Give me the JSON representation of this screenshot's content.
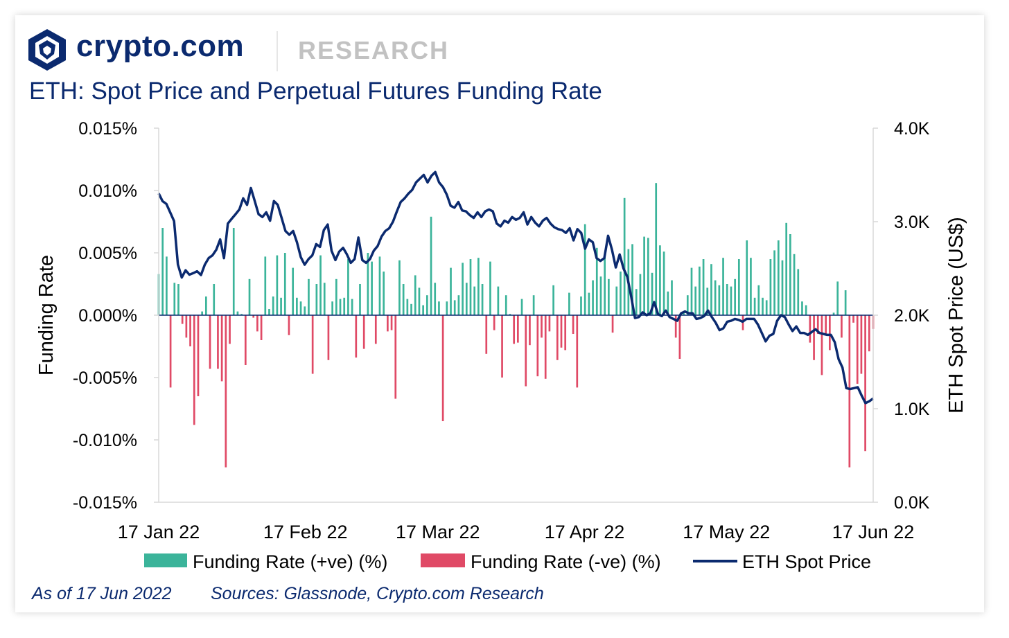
{
  "header": {
    "brand_name": "crypto.com",
    "section_label": "RESEARCH"
  },
  "chart_title": "ETH: Spot Price and Perpetual Futures Funding Rate",
  "footer": {
    "as_of": "As of 17 Jun 2022",
    "sources": "Sources: Glassnode, Crypto.com Research"
  },
  "colors": {
    "positive": "#3bb49a",
    "negative": "#e04a66",
    "line": "#0b2a6f",
    "title": "#0b2a6f"
  },
  "icons": {
    "logo": "crypto-com-lion-shield-icon"
  },
  "chart_data": {
    "type": "bar",
    "title": "ETH: Spot Price and Perpetual Futures Funding Rate",
    "ylabel": "Funding Rate",
    "y2label": "ETH Spot Price (US$)",
    "ylim": [
      -0.015,
      0.015
    ],
    "y2lim": [
      0,
      4000
    ],
    "yticks": [
      "0.015%",
      "0.010%",
      "0.005%",
      "0.000%",
      "-0.005%",
      "-0.010%",
      "-0.015%"
    ],
    "y2ticks": [
      "4.0K",
      "3.0K",
      "2.0K",
      "1.0K",
      "0.0K"
    ],
    "xticks": [
      "17 Jan 22",
      "17 Feb 22",
      "17 Mar 22",
      "17 Apr 22",
      "17 May 22",
      "17 Jun 22"
    ],
    "x_range": [
      "2022-01-17",
      "2022-06-17"
    ],
    "grid": false,
    "legend_position": "bottom",
    "legend": [
      "Funding Rate (+ve) (%)",
      "Funding Rate (-ve) (%)",
      "ETH Spot Price"
    ],
    "funding_rate_pct": [
      0.0033,
      0.007,
      0.0047,
      -0.0058,
      0.0026,
      0.0025,
      -0.0007,
      -0.0018,
      -0.0025,
      -0.0088,
      -0.0065,
      0.0003,
      0.0015,
      -0.0043,
      0.0025,
      -0.0043,
      -0.0053,
      -0.0122,
      -0.0023,
      0.007,
      0.0003,
      0.0001,
      -0.004,
      0.0029,
      -0.0002,
      -0.0013,
      -0.002,
      0.0047,
      0.0005,
      0.0015,
      0.0048,
      0.0014,
      0.005,
      -0.0016,
      0.0038,
      0.0014,
      0.0011,
      0.0007,
      0.0029,
      -0.0047,
      0.0025,
      0.0048,
      0.0026,
      -0.0036,
      0.0011,
      0.0029,
      0.0013,
      0.0014,
      0.0045,
      0.0013,
      -0.0034,
      0.0025,
      -0.0027,
      0.005,
      0.0043,
      -0.0023,
      0.0047,
      0.0035,
      -0.0013,
      -0.0012,
      -0.0067,
      0.0044,
      0.0025,
      0.0013,
      0.0009,
      0.0032,
      0.0022,
      0.0008,
      0.0016,
      0.0079,
      0.0026,
      0.0011,
      -0.0085,
      0.0011,
      0.0038,
      0.0012,
      0.0016,
      0.0042,
      0.0026,
      0.0045,
      0.0023,
      0.0046,
      0.0025,
      -0.0031,
      0.0043,
      -0.0012,
      0.0023,
      -0.005,
      0.0016,
      0.0001,
      -0.0023,
      -0.0022,
      0.0013,
      -0.0057,
      -0.0024,
      0.0016,
      -0.0049,
      -0.0018,
      -0.0051,
      -0.0013,
      0.0024,
      -0.0036,
      -0.0026,
      -0.0028,
      0.0018,
      -0.0015,
      -0.0058,
      0.0015,
      0.0073,
      0.0018,
      0.0028,
      0.0054,
      0.0031,
      0.0047,
      0.0029,
      -0.0014,
      0.0023,
      0.0035,
      0.0094,
      0.0053,
      0.0057,
      0.0021,
      0.0033,
      0.0063,
      0.0062,
      0.0034,
      0.0106,
      0.0056,
      0.0051,
      0.0019,
      0.0028,
      -0.0018,
      -0.0035,
      0.0003,
      0.0016,
      0.0038,
      0.0023,
      0.0039,
      0.0045,
      0.0022,
      0.0041,
      0.0028,
      0.0024,
      0.0046,
      0.0025,
      0.0023,
      0.0029,
      0.0045,
      -0.0012,
      0.006,
      0.0046,
      0.0014,
      0.0024,
      0.0014,
      0.0012,
      0.0045,
      0.0052,
      0.006,
      0.0044,
      0.0074,
      0.0065,
      0.0049,
      0.0037,
      0.0011,
      0.0008,
      -0.0022,
      -0.0036,
      -0.0015,
      -0.0048,
      -0.0015,
      -0.0028,
      0.0002,
      0.0027,
      -0.0018,
      0.002,
      -0.0122,
      -0.0006,
      -0.0055,
      -0.0047,
      -0.0109,
      -0.0029,
      -0.0011
    ],
    "eth_spot_price": [
      3302,
      3220,
      3190,
      3099,
      3006,
      2542,
      2403,
      2480,
      2433,
      2450,
      2470,
      2430,
      2540,
      2610,
      2640,
      2700,
      2810,
      2610,
      2980,
      3030,
      3080,
      3130,
      3250,
      3180,
      3360,
      3220,
      3080,
      3050,
      3100,
      3010,
      3220,
      3180,
      3040,
      2900,
      2860,
      2900,
      2780,
      2620,
      2540,
      2600,
      2640,
      2760,
      2730,
      2910,
      2970,
      2690,
      2590,
      2680,
      2720,
      2650,
      2560,
      2600,
      2830,
      2590,
      2560,
      2600,
      2690,
      2740,
      2840,
      2900,
      2930,
      3000,
      3110,
      3210,
      3250,
      3300,
      3340,
      3420,
      3460,
      3500,
      3420,
      3490,
      3530,
      3420,
      3370,
      3290,
      3170,
      3150,
      3210,
      3120,
      3110,
      3070,
      3040,
      3100,
      3050,
      3110,
      3130,
      3110,
      2980,
      2950,
      3010,
      2990,
      3050,
      3020,
      3040,
      3100,
      2970,
      3050,
      2990,
      2950,
      3010,
      3040,
      2980,
      2940,
      2920,
      2910,
      2880,
      2930,
      2800,
      2920,
      2880,
      2710,
      2810,
      2780,
      2610,
      2580,
      2610,
      2850,
      2700,
      2510,
      2650,
      2500,
      2410,
      2200,
      1970,
      1980,
      2030,
      2000,
      2020,
      2140,
      2010,
      1990,
      2050,
      1980,
      1960,
      1940,
      2020,
      2040,
      2020,
      2020,
      1960,
      1970,
      1990,
      2050,
      1980,
      1920,
      1840,
      1860,
      1930,
      1940,
      1960,
      1950,
      1930,
      1960,
      1960,
      1960,
      1900,
      1810,
      1720,
      1780,
      1800,
      1940,
      2000,
      1980,
      1900,
      1830,
      1880,
      1810,
      1810,
      1790,
      1820,
      1850,
      1810,
      1800,
      1790,
      1790,
      1710,
      1530,
      1440,
      1220,
      1210,
      1220,
      1230,
      1140,
      1060,
      1080,
      1110
    ]
  }
}
